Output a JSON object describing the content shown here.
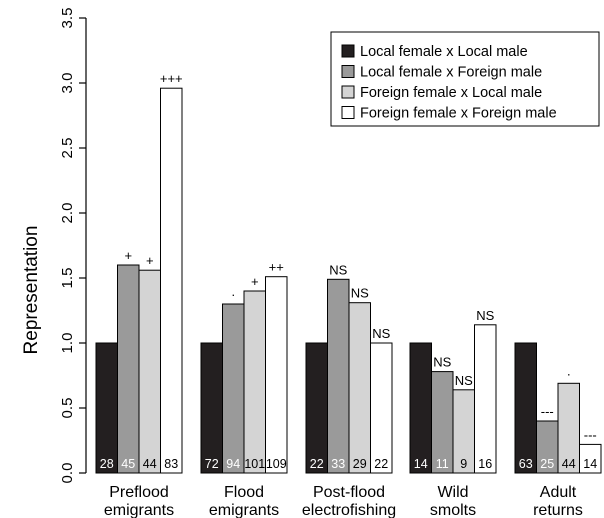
{
  "chart_data": {
    "type": "bar",
    "ylabel": "Representation",
    "xlabel": "",
    "ylim": [
      0,
      3.5
    ],
    "yticks": [
      "0.0",
      "0.5",
      "1.0",
      "1.5",
      "2.0",
      "2.5",
      "3.0",
      "3.5"
    ],
    "categories": [
      [
        "Preflood",
        "emigrants"
      ],
      [
        "Flood",
        "emigrants"
      ],
      [
        "Post-flood",
        "electrofishing"
      ],
      [
        "Wild",
        "smolts"
      ],
      [
        "Adult",
        "returns"
      ]
    ],
    "legend_position": "top-right",
    "series": [
      {
        "name": "Local female x Local male",
        "color": "#231f20",
        "count_color": "#ffffff",
        "values": [
          1.0,
          1.0,
          1.0,
          1.0,
          1.0
        ],
        "counts": [
          "28",
          "72",
          "22",
          "14",
          "63"
        ],
        "significance": [
          "",
          "",
          "",
          "",
          ""
        ]
      },
      {
        "name": "Local female x Foreign male",
        "color": "#9a9a9a",
        "count_color": "#ffffff",
        "values": [
          1.6,
          1.3,
          1.49,
          0.78,
          0.4
        ],
        "counts": [
          "45",
          "94",
          "33",
          "11",
          "25"
        ],
        "significance": [
          "+",
          "·",
          "NS",
          "NS",
          "---"
        ]
      },
      {
        "name": "Foreign female x Local male",
        "color": "#d4d4d4",
        "count_color": "#000000",
        "values": [
          1.56,
          1.4,
          1.31,
          0.64,
          0.69
        ],
        "counts": [
          "44",
          "101",
          "29",
          "9",
          "44"
        ],
        "significance": [
          "+",
          "+",
          "NS",
          "NS",
          "·"
        ]
      },
      {
        "name": "Foreign female  x Foreign male",
        "color": "#ffffff",
        "count_color": "#000000",
        "values": [
          2.96,
          1.51,
          1.0,
          1.14,
          0.22
        ],
        "counts": [
          "83",
          "109",
          "22",
          "16",
          "14"
        ],
        "significance": [
          "+++",
          "++",
          "NS",
          "NS",
          "---"
        ]
      }
    ]
  }
}
